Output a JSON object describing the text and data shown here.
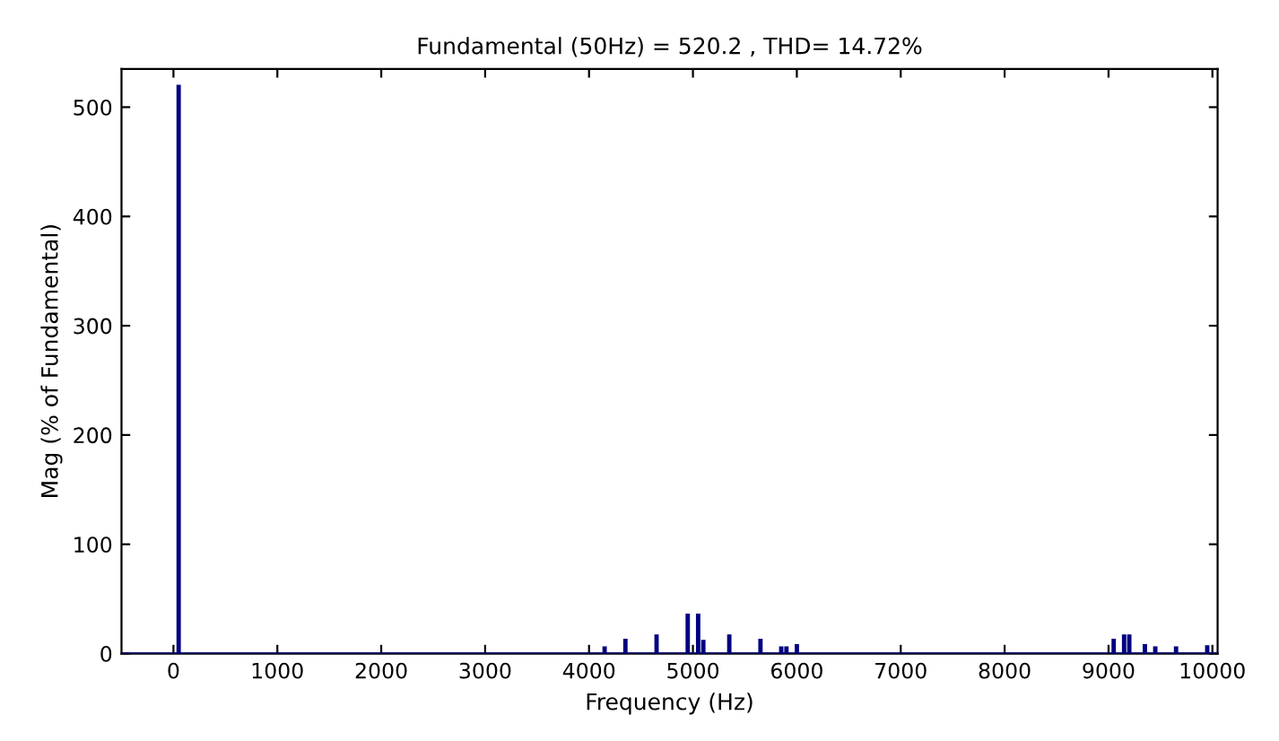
{
  "chart_data": {
    "type": "bar",
    "title": "Fundamental (50Hz) = 520.2 , THD= 14.72%",
    "xlabel": "Frequency (Hz)",
    "ylabel": "Mag (% of Fundamental)",
    "x": [
      50,
      4150,
      4350,
      4650,
      4950,
      5050,
      5100,
      5350,
      5650,
      5850,
      5900,
      6000,
      9050,
      9150,
      9200,
      9350,
      9450,
      9650,
      9950
    ],
    "values": [
      520,
      6,
      13,
      17,
      36,
      36,
      12,
      17,
      13,
      6,
      6,
      8,
      13,
      17,
      17,
      8,
      6,
      6,
      7
    ],
    "color": "#000080",
    "xlim": [
      -500,
      10050
    ],
    "xticks": [
      0,
      {
        "value": 1000,
        "label": "1000"
      },
      2000,
      3000,
      4000,
      5000,
      6000,
      7000,
      8000,
      9000,
      10000
    ],
    "ylim": [
      0,
      535
    ],
    "yticks": [
      0,
      100,
      200,
      300,
      400,
      500
    ],
    "grid": false
  }
}
